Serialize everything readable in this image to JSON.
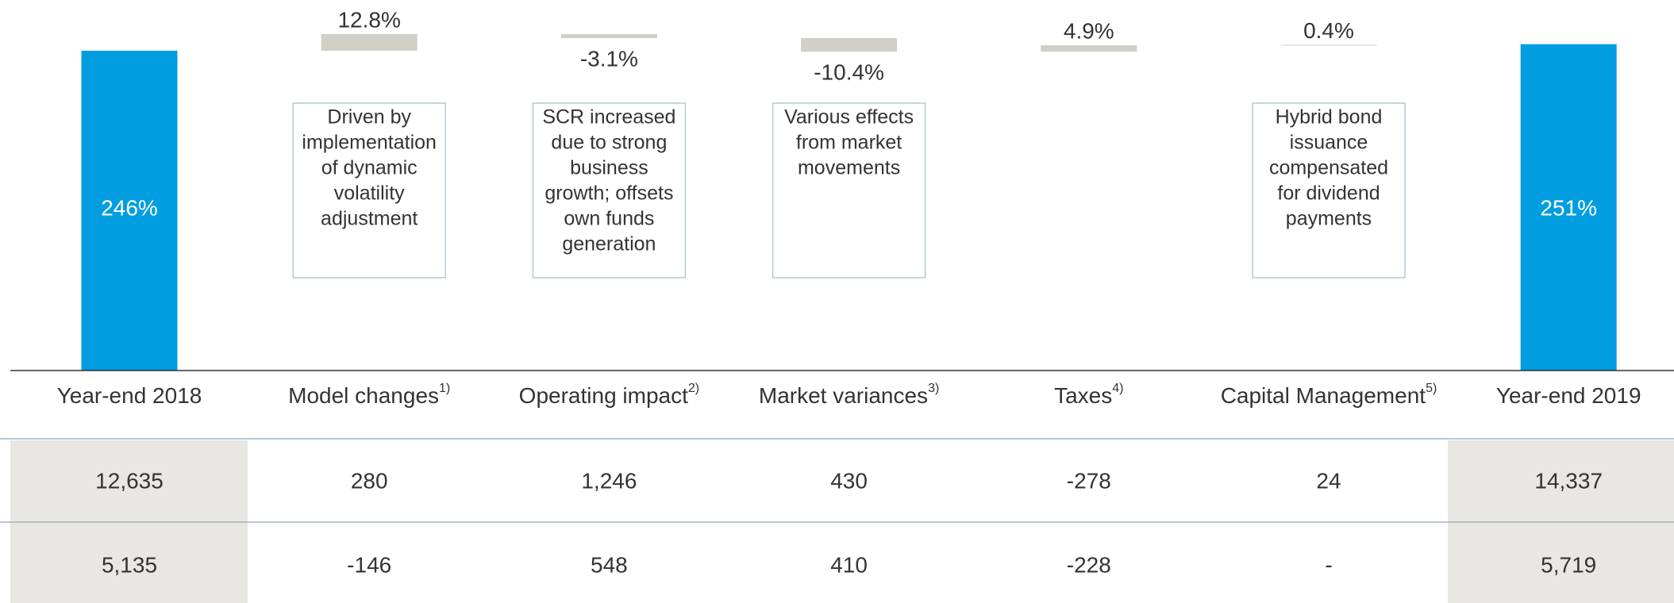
{
  "chart_data": {
    "type": "waterfall",
    "categories": [
      "Year-end 2018",
      "Model changes",
      "Operating impact",
      "Market variances",
      "Taxes",
      "Capital Management",
      "Year-end 2019"
    ],
    "category_notes": [
      null,
      "1)",
      "2)",
      "3)",
      "4)",
      "5)",
      null
    ],
    "measure": [
      "total",
      "relative",
      "relative",
      "relative",
      "relative",
      "relative",
      "total"
    ],
    "values": [
      246,
      12.8,
      -3.1,
      -10.4,
      4.9,
      0.4,
      251
    ],
    "value_labels": [
      "246%",
      "12.8%",
      "-3.1%",
      "-10.4%",
      "4.9%",
      "0.4%",
      "251%"
    ],
    "total_color": "#009de0",
    "delta_color": "#d2cec8",
    "ylim": [
      0,
      285
    ],
    "annotations": [
      {
        "category": 1,
        "lines": [
          "Driven by",
          "implementation",
          "of dynamic",
          "volatility",
          "adjustment"
        ]
      },
      {
        "category": 2,
        "lines": [
          "SCR increased",
          "due to strong",
          "business",
          "growth; offsets",
          "own funds",
          "generation"
        ]
      },
      {
        "category": 3,
        "lines": [
          "Various effects",
          "from market",
          "movements"
        ]
      },
      {
        "category": 5,
        "lines": [
          "Hybrid bond",
          "issuance",
          "compensated",
          "for dividend",
          "payments"
        ]
      }
    ]
  },
  "table": {
    "rows": [
      [
        "12,635",
        "280",
        "1,246",
        "430",
        "-278",
        "24",
        "14,337"
      ],
      [
        "5,135",
        "-146",
        "548",
        "410",
        "-228",
        "-",
        "5,719"
      ]
    ]
  }
}
